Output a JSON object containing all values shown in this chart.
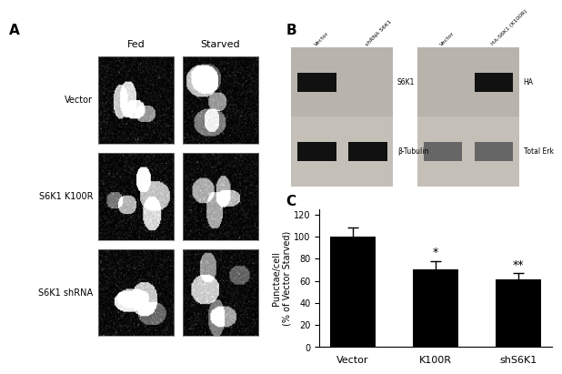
{
  "panel_labels": [
    "A",
    "B",
    "C"
  ],
  "microscopy_labels_row": [
    "Vector",
    "S6K1 K100R",
    "S6K1 shRNA"
  ],
  "microscopy_labels_col": [
    "Fed",
    "Starved"
  ],
  "bar_categories": [
    "Vector",
    "K100R",
    "shS6K1"
  ],
  "bar_values": [
    100,
    70,
    61
  ],
  "bar_errors": [
    8,
    8,
    6
  ],
  "bar_color": "#000000",
  "bar_significance": [
    "",
    "*",
    "**"
  ],
  "ylabel": "Punctae/cell\n(% of Vector Starved)",
  "ylim": [
    0,
    125
  ],
  "yticks": [
    0,
    20,
    40,
    60,
    80,
    100,
    120
  ],
  "wb_left_lane_labels": [
    "Vector",
    "shRNA S6K1"
  ],
  "wb_right_lane_labels": [
    "Vector",
    "HA-S6K1 (K100R)"
  ],
  "wb_left_row_labels": [
    "S6K1",
    "β-Tubulin"
  ],
  "wb_right_row_labels": [
    "HA",
    "Total Erk"
  ],
  "bg_color": "#ffffff"
}
